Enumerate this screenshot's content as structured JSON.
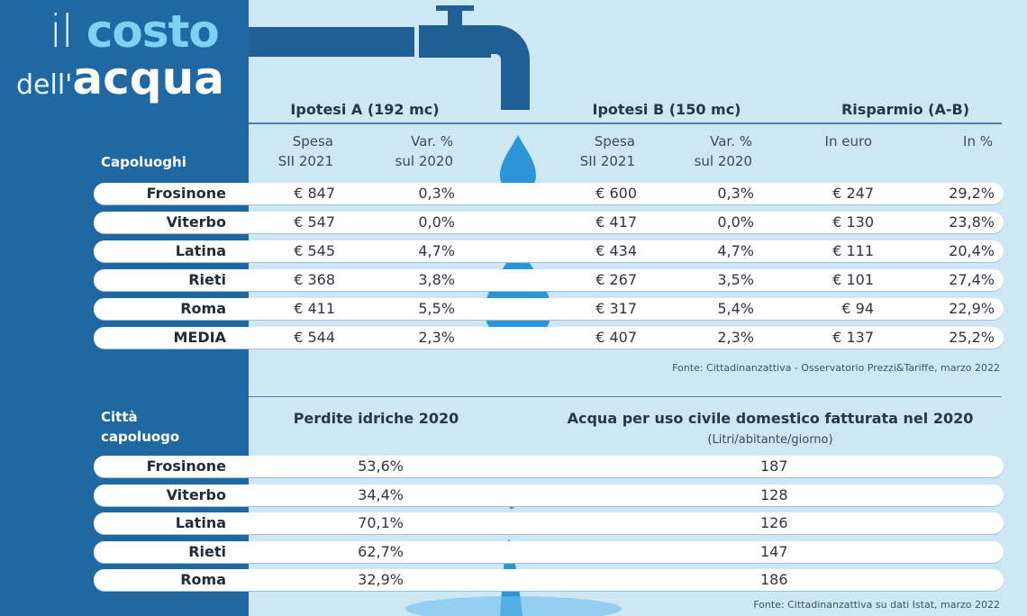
{
  "title": {
    "line1_a": "il",
    "line1_b": "costo",
    "line2_a": "dell'",
    "line2_b": "acqua"
  },
  "table1": {
    "row_header": "Capoluoghi",
    "group_a": "Ipotesi A (192 mc)",
    "group_b": "Ipotesi B (150 mc)",
    "group_c": "Risparmio (A-B)",
    "cols": [
      "Spesa\nSII 2021",
      "Var. %\nsul 2020",
      "Spesa\nSII 2021",
      "Var. %\nsul 2020",
      "In euro",
      "In %"
    ],
    "rows": [
      {
        "name": "Frosinone",
        "a_spesa": "€ 847",
        "a_var": "0,3%",
        "b_spesa": "€ 600",
        "b_var": "0,3%",
        "euro": "€ 247",
        "pct": "29,2%"
      },
      {
        "name": "Viterbo",
        "a_spesa": "€ 547",
        "a_var": "0,0%",
        "b_spesa": "€ 417",
        "b_var": "0,0%",
        "euro": "€ 130",
        "pct": "23,8%"
      },
      {
        "name": "Latina",
        "a_spesa": "€ 545",
        "a_var": "4,7%",
        "b_spesa": "€ 434",
        "b_var": "4,7%",
        "euro": "€ 111",
        "pct": "20,4%"
      },
      {
        "name": "Rieti",
        "a_spesa": "€ 368",
        "a_var": "3,8%",
        "b_spesa": "€ 267",
        "b_var": "3,5%",
        "euro": "€ 101",
        "pct": "27,4%"
      },
      {
        "name": "Roma",
        "a_spesa": "€ 411",
        "a_var": "5,5%",
        "b_spesa": "€ 317",
        "b_var": "5,4%",
        "euro": "€ 94",
        "pct": "22,9%"
      },
      {
        "name": "MEDIA",
        "a_spesa": "€ 544",
        "a_var": "2,3%",
        "b_spesa": "€ 407",
        "b_var": "2,3%",
        "euro": "€ 137",
        "pct": "25,2%"
      }
    ],
    "source": "Fonte: Cittadinanzattiva - Osservatorio Prezzi&Tariffe, marzo 2022"
  },
  "table2": {
    "row_header": "Città\ncapoluogo",
    "col_a": "Perdite idriche 2020",
    "col_b": "Acqua per uso civile domestico fatturata nel 2020",
    "col_b_sub": "(Litri/abitante/giorno)",
    "rows": [
      {
        "name": "Frosinone",
        "perdite": "53,6%",
        "acqua": "187"
      },
      {
        "name": "Viterbo",
        "perdite": "34,4%",
        "acqua": "128"
      },
      {
        "name": "Latina",
        "perdite": "70,1%",
        "acqua": "126"
      },
      {
        "name": "Rieti",
        "perdite": "62,7%",
        "acqua": "147"
      },
      {
        "name": "Roma",
        "perdite": "32,9%",
        "acqua": "186"
      }
    ],
    "source": "Fonte: Cittadinanzattiva su dati Istat, marzo 2022"
  },
  "colors": {
    "panel": "#1f68a2",
    "background": "#cde7f5",
    "drop": "#2b95d6"
  }
}
